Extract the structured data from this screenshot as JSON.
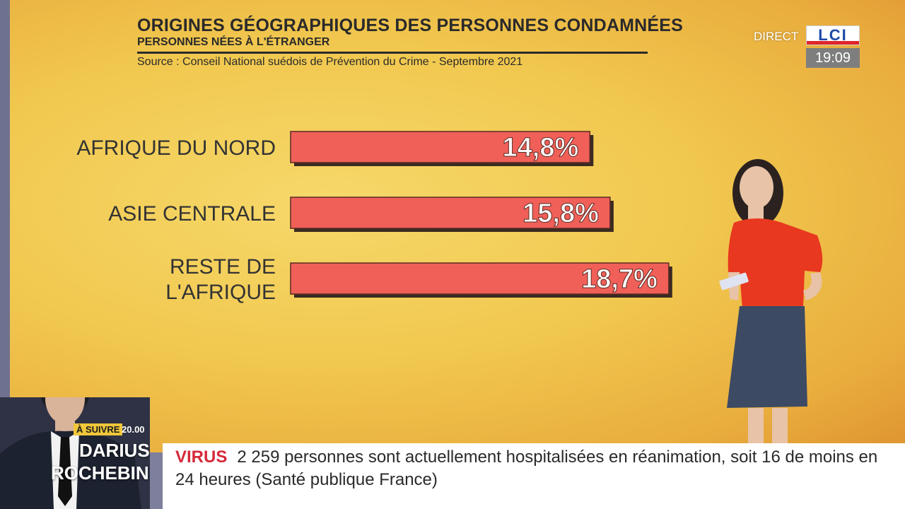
{
  "header": {
    "title": "ORIGINES GÉOGRAPHIQUES DES PERSONNES CONDAMNÉES",
    "subtitle": "PERSONNES NÉES À L'ÉTRANGER",
    "source": "Source : Conseil National suédois de Prévention du Crime - Septembre 2021"
  },
  "chart_data": {
    "type": "bar",
    "orientation": "horizontal",
    "categories": [
      "AFRIQUE DU NORD",
      "ASIE CENTRALE",
      "RESTE DE L'AFRIQUE"
    ],
    "category_lines": [
      [
        "AFRIQUE DU NORD"
      ],
      [
        "ASIE CENTRALE"
      ],
      [
        "RESTE DE",
        "L'AFRIQUE"
      ]
    ],
    "values": [
      14.8,
      15.8,
      18.7
    ],
    "value_labels": [
      "14,8%",
      "15,8%",
      "18,7%"
    ],
    "title": "ORIGINES GÉOGRAPHIQUES DES PERSONNES CONDAMNÉES",
    "subtitle": "PERSONNES NÉES À L'ÉTRANGER",
    "bar_color": "#f06058",
    "grid": false
  },
  "broadcast": {
    "direct_label": "DIRECT",
    "channel": "LCI",
    "clock": "19:09",
    "next_label": "À SUIVRE",
    "next_time": "20.00",
    "next_name_first": "DARIUS",
    "next_name_last": "ROCHEBIN"
  },
  "ticker": {
    "tag": "VIRUS",
    "text": "2 259 personnes sont actuellement hospitalisées en réanimation, soit 16 de moins en 24 heures (Santé publique France)"
  }
}
